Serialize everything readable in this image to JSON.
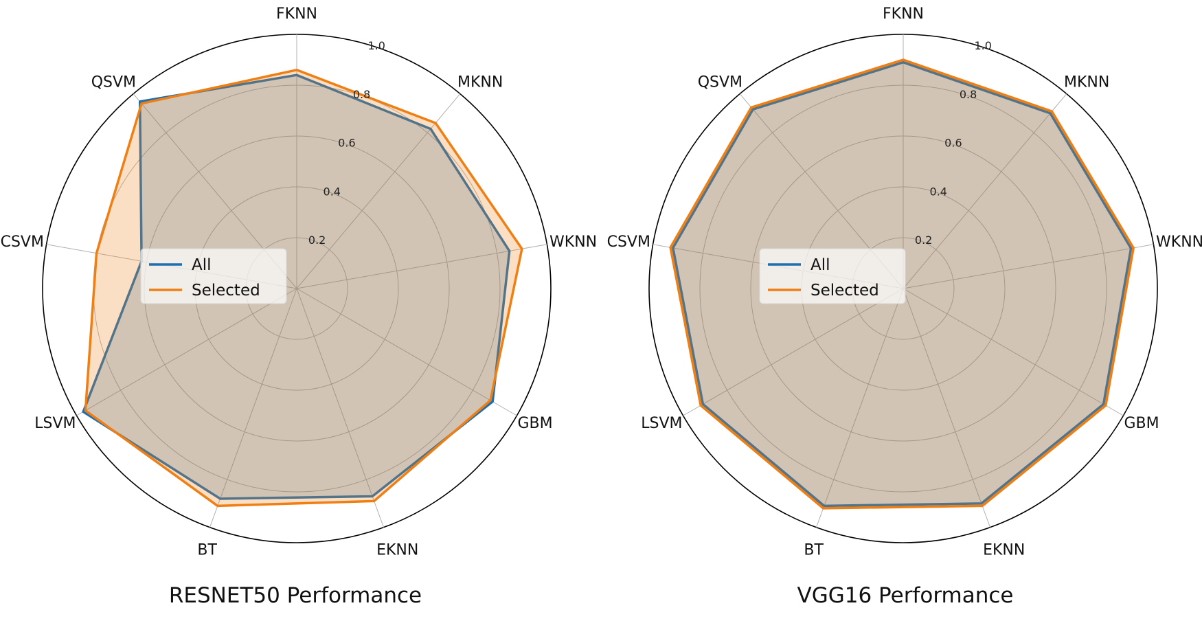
{
  "chart_data": [
    {
      "type": "radar",
      "title": "RESNET50 Performance",
      "categories": [
        "FKNN",
        "MKNN",
        "WKNN",
        "GBM",
        "EKNN",
        "BT",
        "LSVM",
        "CSVM",
        "QSVM"
      ],
      "rlim": [
        0,
        1.0
      ],
      "rticks": [
        "0.2",
        "0.4",
        "0.6",
        "0.8",
        "1.0"
      ],
      "legend_position": "center-left",
      "series": [
        {
          "name": "All",
          "color": "#1f6fb0",
          "values": [
            0.84,
            0.82,
            0.85,
            0.89,
            0.87,
            0.88,
            0.97,
            0.62,
            0.96
          ]
        },
        {
          "name": "Selected",
          "color": "#f07f13",
          "values": [
            0.86,
            0.85,
            0.9,
            0.88,
            0.89,
            0.91,
            0.96,
            0.8,
            0.95
          ]
        }
      ]
    },
    {
      "type": "radar",
      "title": "VGG16 Performance",
      "categories": [
        "FKNN",
        "MKNN",
        "WKNN",
        "GBM",
        "EKNN",
        "BT",
        "LSVM",
        "CSVM",
        "QSVM"
      ],
      "rlim": [
        0,
        1.0
      ],
      "rticks": [
        "0.2",
        "0.4",
        "0.6",
        "0.8",
        "1.0"
      ],
      "legend_position": "center-left",
      "series": [
        {
          "name": "All",
          "color": "#1f6fb0",
          "values": [
            0.89,
            0.9,
            0.91,
            0.91,
            0.9,
            0.91,
            0.91,
            0.92,
            0.92
          ]
        },
        {
          "name": "Selected",
          "color": "#f07f13",
          "values": [
            0.9,
            0.91,
            0.92,
            0.92,
            0.91,
            0.92,
            0.92,
            0.93,
            0.93
          ]
        }
      ]
    }
  ]
}
